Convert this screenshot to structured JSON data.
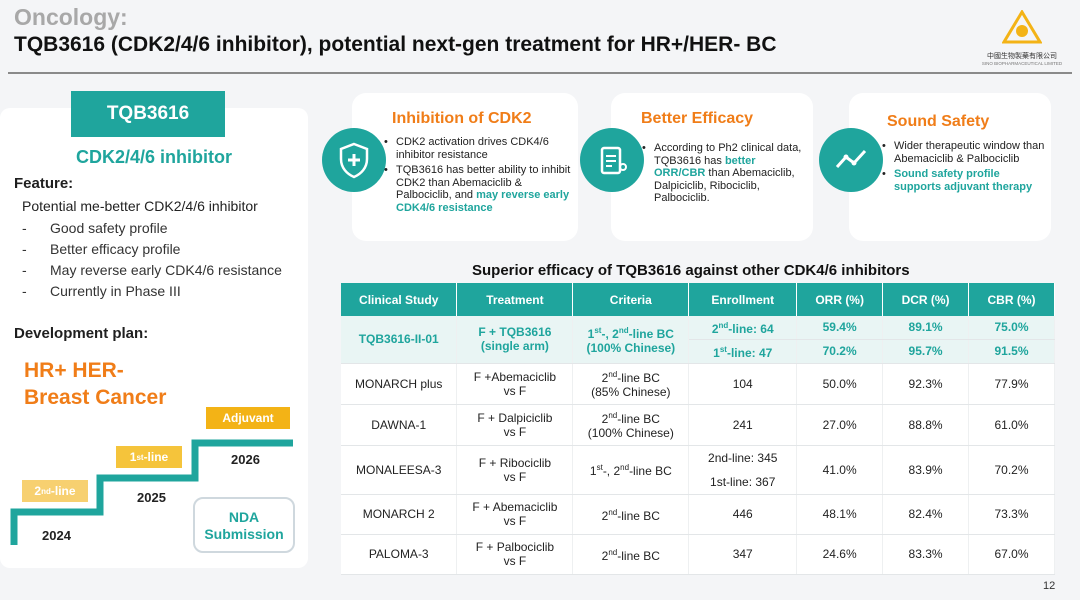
{
  "header": {
    "kicker": "Oncology:",
    "title": "TQB3616 (CDK2/4/6 inhibitor), potential next-gen treatment for HR+/HER- BC",
    "logo_cn": "中國生物製藥有限公司",
    "logo_en": "SINO BIOPHARMACEUTICAL LIMITED"
  },
  "left": {
    "drug": "TQB3616",
    "subtitle": "CDK2/4/6 inhibitor",
    "feature_heading": "Feature:",
    "feature_lead": "Potential me-better CDK2/4/6 inhibitor",
    "features": [
      {
        "dash": "-",
        "text": "Good safety profile"
      },
      {
        "dash": "-",
        "text": "Better efficacy profile"
      },
      {
        "dash": "-",
        "text": "May reverse early CDK4/6 resistance"
      },
      {
        "dash": "-",
        "text": "Currently in Phase III"
      }
    ],
    "dev_heading": "Development plan:",
    "bc_title_1": "HR+ HER-",
    "bc_title_2": "Breast Cancer",
    "steps": [
      {
        "label": "2nd-line",
        "label_pre": "2",
        "label_sup": "nd",
        "label_post": "-line",
        "year": "2024",
        "color": "#f7d070"
      },
      {
        "label": "1st-line",
        "label_pre": "1",
        "label_sup": "st",
        "label_post": "-line",
        "year": "2025",
        "color": "#f5c43b"
      },
      {
        "label": "Adjuvant",
        "label_pre": "Adjuvant",
        "label_sup": "",
        "label_post": "",
        "year": "2026",
        "color": "#f3b316"
      }
    ],
    "nda_line1": "NDA",
    "nda_line2": "Submission"
  },
  "cards": [
    {
      "title": "Inhibition of CDK2",
      "icon": "shield-plus-icon",
      "b1": "CDK2 activation drives CDK4/6 inhibitor resistance",
      "b2_plain": "TQB3616 has better ability to inhibit CDK2 than Abemaciclib & Palbociclib, and ",
      "b2_hl": "may reverse early CDK4/6 resistance"
    },
    {
      "title": "Better Efficacy",
      "icon": "clipboard-stethoscope-icon",
      "b1_plain": "According to Ph2 clinical data,  TQB3616 has ",
      "b1_hl": "better ORR/CBR",
      "b1_tail": " than Abemaciclib, Dalpiciclib, Ribociclib, Palbociclib."
    },
    {
      "title": "Sound Safety",
      "icon": "trend-line-icon",
      "b1": "Wider therapeutic window than  Abemaciclib & Palbociclib",
      "b2_hl": "Sound safety profile supports adjuvant therapy"
    }
  ],
  "table": {
    "title": "Superior efficacy of TQB3616 against other CDK4/6 inhibitors",
    "headers": [
      "Clinical Study",
      "Treatment",
      "Criteria",
      "Enrollment",
      "ORR (%)",
      "DCR (%)",
      "CBR  (%)"
    ],
    "tqb": {
      "study": "TQB3616-II-01",
      "treat_1": "F + TQB3616",
      "treat_2": "(single arm)",
      "crit_1a": "1",
      "crit_1b": "st",
      "crit_1c": "-, 2",
      "crit_1d": "nd",
      "crit_1e": "-line BC",
      "crit_2": "(100% Chinese)",
      "row_a": {
        "enr_pre": "2",
        "enr_sup": "nd",
        "enr_post": "-line: 64",
        "orr": "59.4%",
        "dcr": "89.1%",
        "cbr": "75.0%"
      },
      "row_b": {
        "enr_pre": "1",
        "enr_sup": "st",
        "enr_post": "-line: 47",
        "orr": "70.2%",
        "dcr": "95.7%",
        "cbr": "91.5%"
      }
    },
    "rows": [
      {
        "study": "MONARCH plus",
        "t1": "F +Abemaciclib",
        "t2": "vs  F",
        "c_pre": "2",
        "c_sup": "nd",
        "c_post": "-line BC",
        "c2": "(85% Chinese)",
        "enr": "104",
        "enr2": "",
        "orr": "50.0%",
        "dcr": "92.3%",
        "cbr": "77.9%"
      },
      {
        "study": "DAWNA-1",
        "t1": "F + Dalpiciclib",
        "t2": "vs  F",
        "c_pre": "2",
        "c_sup": "nd",
        "c_post": "-line BC",
        "c2": "(100% Chinese)",
        "enr": "241",
        "enr2": "",
        "orr": "27.0%",
        "dcr": "88.8%",
        "cbr": "61.0%"
      },
      {
        "study": "MONALEESA-3",
        "t1": "F + Ribociclib",
        "t2": "vs  F",
        "c_pre": "1",
        "c_sup": "st",
        "c_post": "-, 2",
        "c_sup2": "nd",
        "c_post2": "-line BC",
        "c2": "",
        "enr": "2nd-line: 345",
        "enr2": "1st-line: 367",
        "orr": "41.0%",
        "dcr": "83.9%",
        "cbr": "70.2%"
      },
      {
        "study": "MONARCH  2",
        "t1": "F + Abemaciclib",
        "t2": "vs  F",
        "c_pre": "2",
        "c_sup": "nd",
        "c_post": "-line BC",
        "c2": "",
        "enr": "446",
        "enr2": "",
        "orr": "48.1%",
        "dcr": "82.4%",
        "cbr": "73.3%"
      },
      {
        "study": "PALOMA-3",
        "t1": "F + Palbociclib",
        "t2": "vs  F",
        "c_pre": "2",
        "c_sup": "nd",
        "c_post": "-line BC",
        "c2": "",
        "enr": "347",
        "enr2": "",
        "orr": "24.6%",
        "dcr": "83.3%",
        "cbr": "67.0%"
      }
    ]
  },
  "page_number": "12",
  "colors": {
    "teal": "#1fa59d",
    "orange": "#f07d18",
    "gold": "#f3b316"
  }
}
